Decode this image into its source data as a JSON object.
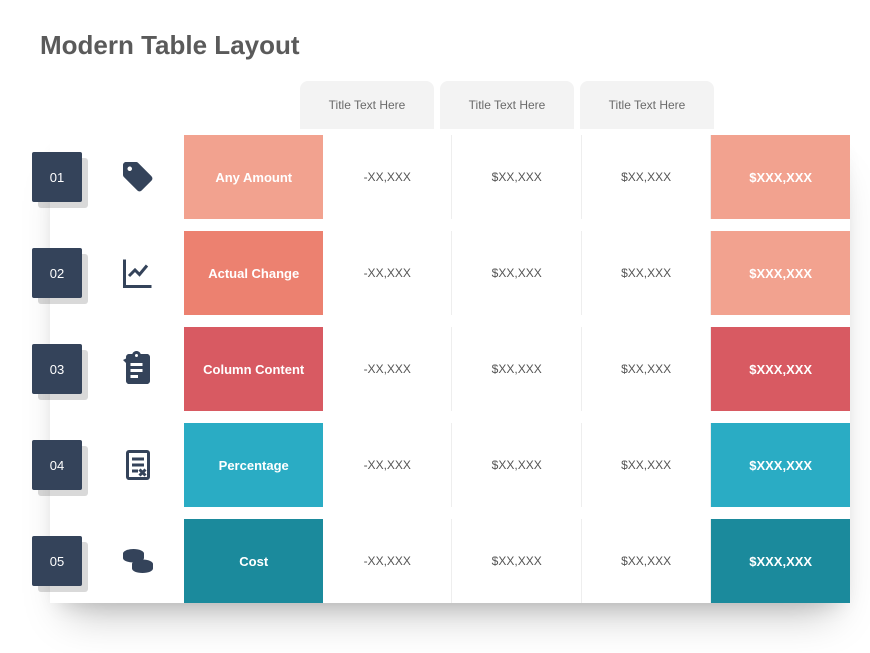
{
  "title": "Modern Table Layout",
  "headers": [
    "Title Text Here",
    "Title Text Here",
    "Title Text Here"
  ],
  "colors": {
    "badge_bg": "#34435a",
    "header_bg": "#f3f3f3",
    "text_muted": "#6a6a6a",
    "text_cell": "#555555",
    "icon": "#34435a"
  },
  "rows": [
    {
      "num": "01",
      "icon": "tag-icon",
      "label": "Any Amount",
      "label_color": "#f2a28f",
      "total_color": "#f2a28f",
      "cells": [
        "-XX,XXX",
        "$XX,XXX",
        "$XX,XXX"
      ],
      "total": "$XXX,XXX"
    },
    {
      "num": "02",
      "icon": "chart-icon",
      "label": "Actual Change",
      "label_color": "#ec8170",
      "total_color": "#f2a28f",
      "cells": [
        "-XX,XXX",
        "$XX,XXX",
        "$XX,XXX"
      ],
      "total": "$XXX,XXX"
    },
    {
      "num": "03",
      "icon": "clipboard-icon",
      "label": "Column Content",
      "label_color": "#d85a62",
      "total_color": "#d85a62",
      "cells": [
        "-XX,XXX",
        "$XX,XXX",
        "$XX,XXX"
      ],
      "total": "$XXX,XXX"
    },
    {
      "num": "04",
      "icon": "document-icon",
      "label": "Percentage",
      "label_color": "#2aacc4",
      "total_color": "#2aacc4",
      "cells": [
        "-XX,XXX",
        "$XX,XXX",
        "$XX,XXX"
      ],
      "total": "$XXX,XXX"
    },
    {
      "num": "05",
      "icon": "coins-icon",
      "label": "Cost",
      "label_color": "#1b8a9c",
      "total_color": "#1b8a9c",
      "cells": [
        "-XX,XXX",
        "$XX,XXX",
        "$XX,XXX"
      ],
      "total": "$XXX,XXX"
    }
  ]
}
